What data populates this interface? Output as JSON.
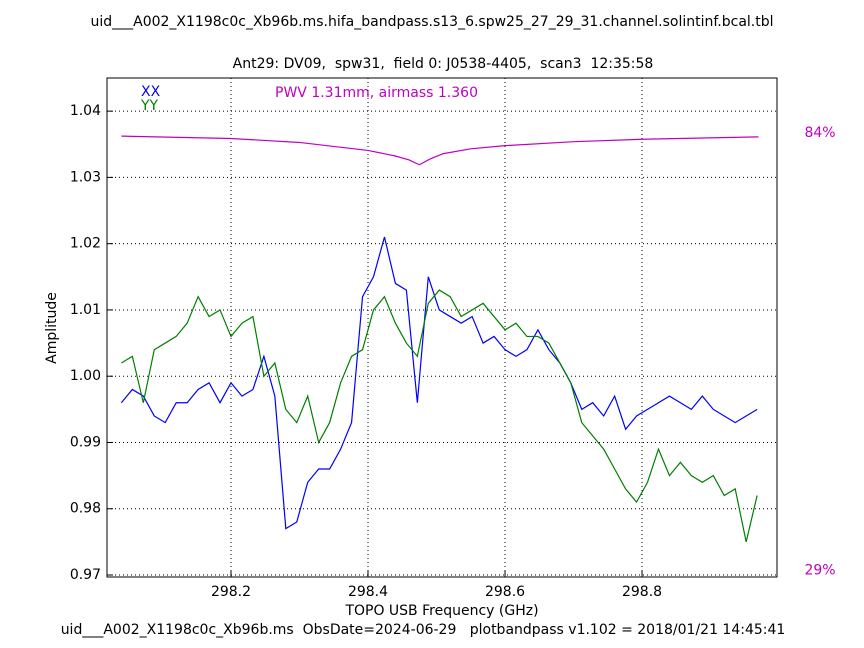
{
  "chart_data": {
    "type": "line",
    "title": "uid___A002_X1198c0c_Xb96b.ms.hifa_bandpass.s13_6.spw25_27_29_31.channel.solintinf.bcal.tbl",
    "subtitle": "Ant29: DV09,  spw31,  field 0: J0538-4405,  scan3  12:35:58",
    "footer": "uid___A002_X1198c0c_Xb96b.ms  ObsDate=2024-06-29   plotbandpass v1.102 = 2018/01/21 14:45:41",
    "annotation": "PWV 1.31mm, airmass 1.360",
    "x_label": "TOPO USB Frequency (GHz)",
    "y_label": "Amplitude",
    "xlim": [
      298.019,
      298.997
    ],
    "xticks": [
      298.2,
      298.4,
      298.6,
      298.8
    ],
    "ylim": [
      0.9697,
      1.045
    ],
    "yticks": [
      0.97,
      0.98,
      0.99,
      {
        "value": 1.0,
        "label": "1.00"
      },
      1.01,
      1.02,
      1.03,
      1.04
    ],
    "y2lim": [
      28.2,
      90.9
    ],
    "y2ticks": [
      {
        "value": 84,
        "label": "84%"
      },
      {
        "value": 29,
        "label": "29%"
      }
    ],
    "grid": true,
    "x": [
      298.04,
      298.056,
      298.072,
      298.088,
      298.104,
      298.12,
      298.136,
      298.152,
      298.168,
      298.184,
      298.2,
      298.216,
      298.232,
      298.248,
      298.264,
      298.28,
      298.296,
      298.312,
      298.328,
      298.344,
      298.36,
      298.376,
      298.392,
      298.408,
      298.424,
      298.44,
      298.456,
      298.472,
      298.488,
      298.504,
      298.52,
      298.536,
      298.552,
      298.568,
      298.584,
      298.6,
      298.616,
      298.632,
      298.648,
      298.664,
      298.68,
      298.696,
      298.712,
      298.728,
      298.744,
      298.76,
      298.776,
      298.792,
      298.808,
      298.824,
      298.84,
      298.856,
      298.872,
      298.888,
      298.904,
      298.92,
      298.936,
      298.952,
      298.968
    ],
    "series": [
      {
        "name": "XX",
        "color": "#0000ff",
        "values": [
          0.996,
          0.998,
          0.997,
          0.994,
          0.993,
          0.996,
          0.996,
          0.998,
          0.999,
          0.996,
          0.999,
          0.997,
          0.998,
          1.003,
          0.997,
          0.977,
          0.978,
          0.984,
          0.986,
          0.986,
          0.989,
          0.993,
          1.012,
          1.015,
          1.021,
          1.014,
          1.013,
          0.996,
          1.015,
          1.01,
          1.009,
          1.008,
          1.009,
          1.005,
          1.006,
          1.004,
          1.003,
          1.004,
          1.007,
          1.004,
          1.002,
          0.999,
          0.995,
          0.996,
          0.994,
          0.997,
          0.992,
          0.994,
          0.995,
          0.996,
          0.997,
          0.996,
          0.995,
          0.997,
          0.995,
          0.994,
          0.993,
          0.994,
          0.995
        ]
      },
      {
        "name": "YY",
        "color": "#008000",
        "values": [
          1.002,
          1.003,
          0.996,
          1.004,
          1.005,
          1.006,
          1.008,
          1.012,
          1.009,
          1.01,
          1.006,
          1.008,
          1.009,
          1.0,
          1.002,
          0.995,
          0.993,
          0.997,
          0.99,
          0.993,
          0.999,
          1.003,
          1.004,
          1.01,
          1.012,
          1.008,
          1.005,
          1.003,
          1.011,
          1.013,
          1.012,
          1.009,
          1.01,
          1.011,
          1.009,
          1.007,
          1.008,
          1.006,
          1.006,
          1.005,
          1.002,
          0.999,
          0.993,
          0.991,
          0.989,
          0.986,
          0.983,
          0.981,
          0.984,
          0.989,
          0.985,
          0.987,
          0.985,
          0.984,
          0.985,
          0.982,
          0.983,
          0.975,
          0.982
        ]
      },
      {
        "color": "#c000c0",
        "axis": "y2",
        "x": [
          298.04,
          298.2,
          298.3,
          298.4,
          298.44,
          298.46,
          298.475,
          298.49,
          298.51,
          298.55,
          298.6,
          298.7,
          298.8,
          298.97
        ],
        "values": [
          83.6,
          83.3,
          82.8,
          81.8,
          81.1,
          80.6,
          80.0,
          80.7,
          81.4,
          82.0,
          82.4,
          82.9,
          83.2,
          83.5
        ]
      }
    ]
  }
}
